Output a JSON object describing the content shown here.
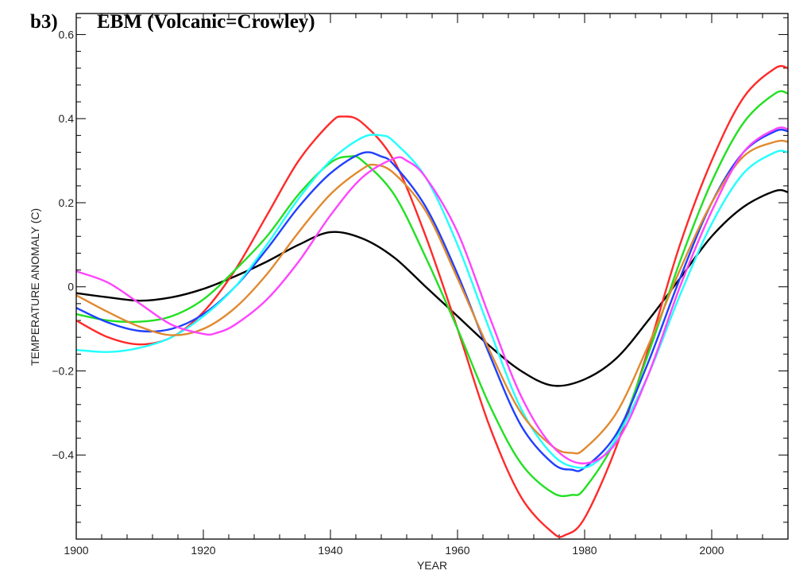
{
  "chart_data": {
    "type": "line",
    "panel_label": "b3)",
    "title": "EBM (Volcanic=Crowley)",
    "xlabel": "YEAR",
    "ylabel": "TEMPERATURE ANOMALY (C)",
    "xlim": [
      1900,
      2012
    ],
    "ylim": [
      -0.6,
      0.65
    ],
    "xticks": [
      1900,
      1920,
      1940,
      1960,
      1980,
      2000
    ],
    "xtick_labels": [
      "1900",
      "1920",
      "1940",
      "1960",
      "1980",
      "2000"
    ],
    "yticks": [
      -0.4,
      -0.2,
      0,
      0.2,
      0.4,
      0.6
    ],
    "ytick_labels": [
      "−0.4",
      "−0.2",
      "0",
      "0.2",
      "0.4",
      "0.6"
    ],
    "grid": false,
    "series": [
      {
        "name": "black",
        "color": "#000000",
        "x": [
          1900,
          1905,
          1910,
          1915,
          1920,
          1925,
          1930,
          1935,
          1940,
          1945,
          1950,
          1955,
          1960,
          1965,
          1970,
          1975,
          1980,
          1985,
          1990,
          1995,
          2000,
          2005,
          2010,
          2012
        ],
        "y": [
          -0.015,
          -0.025,
          -0.033,
          -0.025,
          -0.005,
          0.025,
          0.06,
          0.1,
          0.13,
          0.115,
          0.07,
          0.0,
          -0.07,
          -0.14,
          -0.2,
          -0.235,
          -0.22,
          -0.17,
          -0.08,
          0.02,
          0.12,
          0.19,
          0.228,
          0.225
        ]
      },
      {
        "name": "red",
        "color": "#ff2a2a",
        "x": [
          1900,
          1905,
          1910,
          1915,
          1920,
          1925,
          1930,
          1935,
          1940,
          1942,
          1945,
          1950,
          1955,
          1960,
          1965,
          1970,
          1975,
          1977,
          1980,
          1985,
          1990,
          1995,
          2000,
          2005,
          2010,
          2012
        ],
        "y": [
          -0.08,
          -0.12,
          -0.137,
          -0.12,
          -0.06,
          0.04,
          0.17,
          0.3,
          0.39,
          0.405,
          0.39,
          0.3,
          0.12,
          -0.1,
          -0.33,
          -0.5,
          -0.585,
          -0.59,
          -0.55,
          -0.38,
          -0.15,
          0.1,
          0.3,
          0.45,
          0.52,
          0.52
        ]
      },
      {
        "name": "green",
        "color": "#22e022",
        "x": [
          1900,
          1905,
          1910,
          1915,
          1920,
          1925,
          1930,
          1935,
          1940,
          1943,
          1945,
          1950,
          1955,
          1960,
          1965,
          1970,
          1975,
          1978,
          1980,
          1985,
          1990,
          1995,
          2000,
          2005,
          2010,
          2012
        ],
        "y": [
          -0.065,
          -0.08,
          -0.083,
          -0.07,
          -0.03,
          0.04,
          0.12,
          0.22,
          0.295,
          0.31,
          0.3,
          0.22,
          0.07,
          -0.1,
          -0.28,
          -0.42,
          -0.49,
          -0.495,
          -0.48,
          -0.36,
          -0.16,
          0.06,
          0.25,
          0.39,
          0.46,
          0.46
        ]
      },
      {
        "name": "blue",
        "color": "#2040ff",
        "x": [
          1900,
          1905,
          1910,
          1915,
          1920,
          1925,
          1930,
          1935,
          1940,
          1945,
          1948,
          1950,
          1955,
          1960,
          1965,
          1970,
          1975,
          1978,
          1980,
          1985,
          1990,
          1995,
          2000,
          2005,
          2010,
          2012
        ],
        "y": [
          -0.05,
          -0.085,
          -0.105,
          -0.1,
          -0.065,
          0.0,
          0.09,
          0.19,
          0.27,
          0.318,
          0.31,
          0.29,
          0.19,
          0.03,
          -0.16,
          -0.33,
          -0.42,
          -0.435,
          -0.43,
          -0.35,
          -0.18,
          0.02,
          0.2,
          0.32,
          0.37,
          0.37
        ]
      },
      {
        "name": "cyan",
        "color": "#22ffff",
        "x": [
          1900,
          1905,
          1910,
          1915,
          1920,
          1925,
          1930,
          1935,
          1940,
          1945,
          1948,
          1950,
          1955,
          1960,
          1965,
          1970,
          1975,
          1979,
          1982,
          1985,
          1990,
          1995,
          2000,
          2005,
          2010,
          2012
        ],
        "y": [
          -0.15,
          -0.155,
          -0.145,
          -0.12,
          -0.07,
          0.0,
          0.1,
          0.21,
          0.3,
          0.355,
          0.36,
          0.345,
          0.26,
          0.1,
          -0.1,
          -0.29,
          -0.4,
          -0.43,
          -0.415,
          -0.36,
          -0.21,
          -0.02,
          0.15,
          0.27,
          0.32,
          0.32
        ]
      },
      {
        "name": "orange",
        "color": "#e08a30",
        "x": [
          1900,
          1905,
          1910,
          1915,
          1920,
          1925,
          1930,
          1935,
          1940,
          1945,
          1947,
          1950,
          1955,
          1960,
          1965,
          1970,
          1975,
          1978,
          1980,
          1985,
          1990,
          1995,
          2000,
          2005,
          2010,
          2012
        ],
        "y": [
          -0.02,
          -0.06,
          -0.095,
          -0.115,
          -0.1,
          -0.05,
          0.03,
          0.13,
          0.22,
          0.28,
          0.29,
          0.27,
          0.18,
          0.02,
          -0.15,
          -0.3,
          -0.38,
          -0.395,
          -0.385,
          -0.3,
          -0.14,
          0.04,
          0.2,
          0.31,
          0.345,
          0.345
        ]
      },
      {
        "name": "magenta",
        "color": "#ff44ff",
        "x": [
          1900,
          1905,
          1910,
          1915,
          1920,
          1922,
          1925,
          1930,
          1935,
          1940,
          1945,
          1950,
          1952,
          1955,
          1960,
          1965,
          1970,
          1975,
          1980,
          1985,
          1990,
          1995,
          2000,
          2005,
          2010,
          2012
        ],
        "y": [
          0.037,
          0.01,
          -0.04,
          -0.09,
          -0.112,
          -0.11,
          -0.09,
          -0.03,
          0.06,
          0.17,
          0.26,
          0.305,
          0.3,
          0.26,
          0.13,
          -0.07,
          -0.26,
          -0.38,
          -0.42,
          -0.37,
          -0.21,
          0.0,
          0.18,
          0.32,
          0.375,
          0.375
        ]
      }
    ]
  }
}
